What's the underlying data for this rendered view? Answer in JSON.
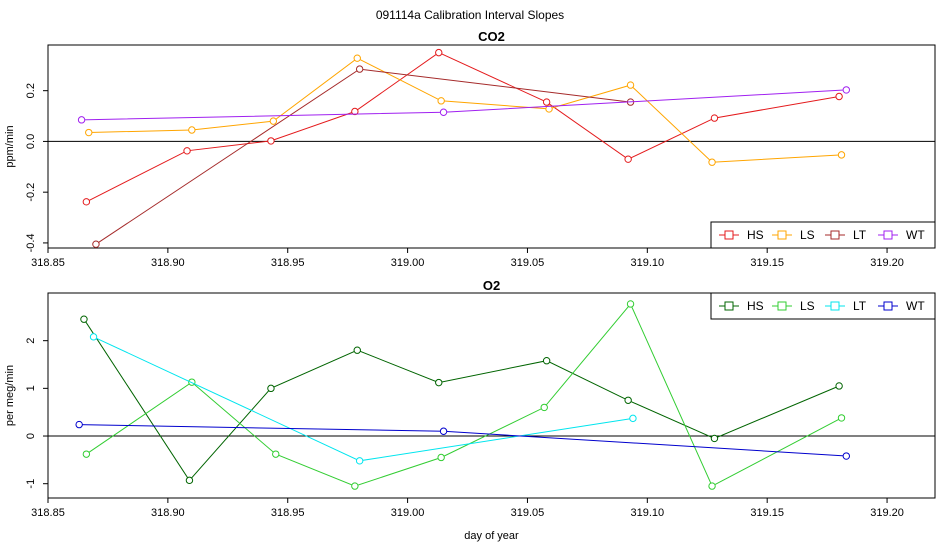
{
  "main_title": "091114a   Calibration Interval Slopes",
  "chart_data": [
    {
      "type": "line",
      "title": "CO2",
      "xlabel": "",
      "ylabel": "ppm/min",
      "xlim": [
        318.85,
        319.22
      ],
      "ylim": [
        -0.42,
        0.38
      ],
      "x_ticks": [
        318.85,
        318.9,
        318.95,
        319.0,
        319.05,
        319.1,
        319.15,
        319.2
      ],
      "x_tick_labels": [
        "318.85",
        "318.90",
        "318.95",
        "319.00",
        "319.05",
        "319.10",
        "319.15",
        "319.20"
      ],
      "y_ticks": [
        -0.4,
        -0.2,
        0.0,
        0.2
      ],
      "y_tick_labels": [
        "-0.4",
        "-0.2",
        "0.0",
        "0.2"
      ],
      "reference_line": 0,
      "legend_position": "bottom-right",
      "series": [
        {
          "name": "HS",
          "color": "#e41a1c",
          "x": [
            318.866,
            318.908,
            318.943,
            318.978,
            319.013,
            319.058,
            319.092,
            319.128,
            319.18
          ],
          "y": [
            -0.238,
            -0.037,
            0.002,
            0.118,
            0.35,
            0.155,
            -0.07,
            0.092,
            0.177
          ]
        },
        {
          "name": "LS",
          "color": "#ffa500",
          "x": [
            318.867,
            318.91,
            318.944,
            318.979,
            319.014,
            319.059,
            319.093,
            319.127,
            319.181
          ],
          "y": [
            0.035,
            0.045,
            0.08,
            0.328,
            0.16,
            0.128,
            0.222,
            -0.082,
            -0.053
          ]
        },
        {
          "name": "LT",
          "color": "#a52a2a",
          "x": [
            318.87,
            318.98,
            319.093
          ],
          "y": [
            -0.405,
            0.285,
            0.155
          ]
        },
        {
          "name": "WT",
          "color": "#a020f0",
          "x": [
            318.864,
            319.015,
            319.183
          ],
          "y": [
            0.085,
            0.115,
            0.203
          ]
        }
      ]
    },
    {
      "type": "line",
      "title": "O2",
      "xlabel": "day of year",
      "ylabel": "per meg/min",
      "xlim": [
        318.85,
        319.22
      ],
      "ylim": [
        -1.3,
        3.0
      ],
      "x_ticks": [
        318.85,
        318.9,
        318.95,
        319.0,
        319.05,
        319.1,
        319.15,
        319.2
      ],
      "x_tick_labels": [
        "318.85",
        "318.90",
        "318.95",
        "319.00",
        "319.05",
        "319.10",
        "319.15",
        "319.20"
      ],
      "y_ticks": [
        -1,
        0,
        1,
        2
      ],
      "y_tick_labels": [
        "-1",
        "0",
        "1",
        "2"
      ],
      "reference_line": 0,
      "legend_position": "top-right",
      "series": [
        {
          "name": "HS",
          "color": "#006400",
          "x": [
            318.865,
            318.909,
            318.943,
            318.979,
            319.013,
            319.058,
            319.092,
            319.128,
            319.18
          ],
          "y": [
            2.45,
            -0.93,
            1.0,
            1.8,
            1.12,
            1.58,
            0.75,
            -0.05,
            1.05
          ]
        },
        {
          "name": "LS",
          "color": "#32cd32",
          "x": [
            318.866,
            318.91,
            318.945,
            318.978,
            319.014,
            319.057,
            319.093,
            319.127,
            319.181
          ],
          "y": [
            -0.38,
            1.13,
            -0.38,
            -1.05,
            -0.45,
            0.6,
            2.77,
            -1.05,
            0.38
          ]
        },
        {
          "name": "LT",
          "color": "#00e5ee",
          "x": [
            318.869,
            318.98,
            319.094
          ],
          "y": [
            2.08,
            -0.52,
            0.37
          ]
        },
        {
          "name": "WT",
          "color": "#0000cd",
          "x": [
            318.863,
            319.015,
            319.183
          ],
          "y": [
            0.24,
            0.1,
            -0.42
          ]
        }
      ]
    }
  ]
}
